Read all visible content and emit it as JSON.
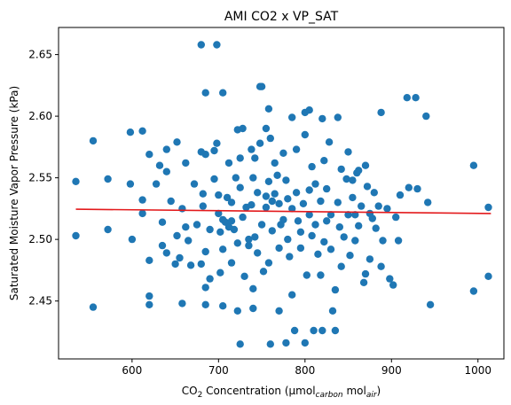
{
  "chart_data": {
    "type": "scatter",
    "title": "AMI CO2 x VP_SAT",
    "xlabel": {
      "main": "CO",
      "sub2": "2",
      "mid": " Concentration (μmol",
      "sub_carbon": "carbon",
      "mol": " mol",
      "sub_air": "air",
      "end": ")"
    },
    "ylabel": "Saturated Moisture Vapor Pressure (kPa)",
    "xlim": [
      515,
      1030
    ],
    "ylim": [
      2.403,
      2.672
    ],
    "xticks": [
      600,
      700,
      800,
      900,
      1000
    ],
    "yticks": [
      2.45,
      2.5,
      2.55,
      2.6,
      2.65
    ],
    "ytick_labels": [
      "2.45",
      "2.50",
      "2.55",
      "2.60",
      "2.65"
    ],
    "point_color": "#1f77b4",
    "line_color": "#e31a1c",
    "trend_line": {
      "x": [
        535,
        1015
      ],
      "y": [
        2.5245,
        2.521
      ]
    },
    "points": [
      [
        535,
        2.547
      ],
      [
        535,
        2.503
      ],
      [
        555,
        2.58
      ],
      [
        555,
        2.445
      ],
      [
        572,
        2.549
      ],
      [
        572,
        2.508
      ],
      [
        598,
        2.587
      ],
      [
        598,
        2.545
      ],
      [
        600,
        2.5
      ],
      [
        612,
        2.588
      ],
      [
        612,
        2.532
      ],
      [
        612,
        2.521
      ],
      [
        620,
        2.569
      ],
      [
        620,
        2.483
      ],
      [
        620,
        2.454
      ],
      [
        620,
        2.447
      ],
      [
        628,
        2.545
      ],
      [
        632,
        2.56
      ],
      [
        635,
        2.514
      ],
      [
        635,
        2.495
      ],
      [
        640,
        2.573
      ],
      [
        640,
        2.555
      ],
      [
        640,
        2.489
      ],
      [
        645,
        2.531
      ],
      [
        650,
        2.48
      ],
      [
        652,
        2.579
      ],
      [
        652,
        2.503
      ],
      [
        655,
        2.485
      ],
      [
        658,
        2.525
      ],
      [
        658,
        2.448
      ],
      [
        662,
        2.562
      ],
      [
        662,
        2.51
      ],
      [
        665,
        2.499
      ],
      [
        668,
        2.479
      ],
      [
        672,
        2.545
      ],
      [
        675,
        2.512
      ],
      [
        680,
        2.658
      ],
      [
        680,
        2.571
      ],
      [
        680,
        2.48
      ],
      [
        682,
        2.537
      ],
      [
        682,
        2.527
      ],
      [
        685,
        2.619
      ],
      [
        685,
        2.569
      ],
      [
        685,
        2.49
      ],
      [
        685,
        2.461
      ],
      [
        685,
        2.447
      ],
      [
        690,
        2.508
      ],
      [
        690,
        2.468
      ],
      [
        695,
        2.572
      ],
      [
        695,
        2.549
      ],
      [
        698,
        2.658
      ],
      [
        698,
        2.578
      ],
      [
        700,
        2.536
      ],
      [
        700,
        2.521
      ],
      [
        702,
        2.506
      ],
      [
        702,
        2.473
      ],
      [
        705,
        2.619
      ],
      [
        705,
        2.516
      ],
      [
        705,
        2.492
      ],
      [
        705,
        2.446
      ],
      [
        708,
        2.514
      ],
      [
        710,
        2.534
      ],
      [
        712,
        2.562
      ],
      [
        712,
        2.51
      ],
      [
        715,
        2.53
      ],
      [
        715,
        2.515
      ],
      [
        715,
        2.481
      ],
      [
        718,
        2.508
      ],
      [
        720,
        2.55
      ],
      [
        722,
        2.589
      ],
      [
        722,
        2.497
      ],
      [
        722,
        2.442
      ],
      [
        725,
        2.415
      ],
      [
        725,
        2.566
      ],
      [
        725,
        2.542
      ],
      [
        728,
        2.59
      ],
      [
        728,
        2.518
      ],
      [
        730,
        2.47
      ],
      [
        732,
        2.526
      ],
      [
        735,
        2.5
      ],
      [
        735,
        2.495
      ],
      [
        738,
        2.573
      ],
      [
        738,
        2.528
      ],
      [
        740,
        2.55
      ],
      [
        740,
        2.46
      ],
      [
        740,
        2.444
      ],
      [
        742,
        2.566
      ],
      [
        742,
        2.502
      ],
      [
        745,
        2.538
      ],
      [
        745,
        2.489
      ],
      [
        748,
        2.624
      ],
      [
        748,
        2.578
      ],
      [
        750,
        2.624
      ],
      [
        750,
        2.512
      ],
      [
        752,
        2.474
      ],
      [
        755,
        2.59
      ],
      [
        755,
        2.535
      ],
      [
        755,
        2.526
      ],
      [
        758,
        2.606
      ],
      [
        758,
        2.547
      ],
      [
        758,
        2.481
      ],
      [
        760,
        2.582
      ],
      [
        760,
        2.415
      ],
      [
        762,
        2.531
      ],
      [
        762,
        2.507
      ],
      [
        765,
        2.562
      ],
      [
        765,
        2.537
      ],
      [
        768,
        2.552
      ],
      [
        770,
        2.529
      ],
      [
        770,
        2.493
      ],
      [
        770,
        2.442
      ],
      [
        772,
        2.512
      ],
      [
        775,
        2.57
      ],
      [
        775,
        2.516
      ],
      [
        778,
        2.416
      ],
      [
        778,
        2.548
      ],
      [
        780,
        2.5
      ],
      [
        780,
        2.533
      ],
      [
        782,
        2.486
      ],
      [
        785,
        2.599
      ],
      [
        785,
        2.525
      ],
      [
        785,
        2.455
      ],
      [
        788,
        2.426
      ],
      [
        790,
        2.573
      ],
      [
        790,
        2.538
      ],
      [
        792,
        2.515
      ],
      [
        795,
        2.506
      ],
      [
        795,
        2.493
      ],
      [
        798,
        2.529
      ],
      [
        800,
        2.603
      ],
      [
        800,
        2.585
      ],
      [
        800,
        2.416
      ],
      [
        802,
        2.471
      ],
      [
        805,
        2.605
      ],
      [
        805,
        2.54
      ],
      [
        805,
        2.52
      ],
      [
        808,
        2.559
      ],
      [
        808,
        2.503
      ],
      [
        810,
        2.426
      ],
      [
        812,
        2.545
      ],
      [
        812,
        2.512
      ],
      [
        815,
        2.488
      ],
      [
        818,
        2.531
      ],
      [
        818,
        2.471
      ],
      [
        820,
        2.426
      ],
      [
        820,
        2.598
      ],
      [
        822,
        2.564
      ],
      [
        822,
        2.498
      ],
      [
        825,
        2.541
      ],
      [
        825,
        2.515
      ],
      [
        828,
        2.579
      ],
      [
        830,
        2.52
      ],
      [
        830,
        2.492
      ],
      [
        832,
        2.442
      ],
      [
        835,
        2.426
      ],
      [
        835,
        2.459
      ],
      [
        838,
        2.599
      ],
      [
        838,
        2.53
      ],
      [
        840,
        2.51
      ],
      [
        842,
        2.557
      ],
      [
        842,
        2.478
      ],
      [
        845,
        2.502
      ],
      [
        848,
        2.549
      ],
      [
        850,
        2.571
      ],
      [
        850,
        2.52
      ],
      [
        852,
        2.487
      ],
      [
        855,
        2.548
      ],
      [
        855,
        2.534
      ],
      [
        858,
        2.52
      ],
      [
        858,
        2.499
      ],
      [
        860,
        2.554
      ],
      [
        862,
        2.556
      ],
      [
        862,
        2.511
      ],
      [
        865,
        2.527
      ],
      [
        868,
        2.465
      ],
      [
        870,
        2.56
      ],
      [
        870,
        2.472
      ],
      [
        872,
        2.543
      ],
      [
        875,
        2.521
      ],
      [
        875,
        2.484
      ],
      [
        878,
        2.517
      ],
      [
        880,
        2.538
      ],
      [
        882,
        2.509
      ],
      [
        885,
        2.527
      ],
      [
        888,
        2.603
      ],
      [
        888,
        2.478
      ],
      [
        890,
        2.499
      ],
      [
        895,
        2.525
      ],
      [
        898,
        2.468
      ],
      [
        902,
        2.463
      ],
      [
        905,
        2.518
      ],
      [
        908,
        2.499
      ],
      [
        910,
        2.536
      ],
      [
        918,
        2.615
      ],
      [
        920,
        2.542
      ],
      [
        928,
        2.615
      ],
      [
        930,
        2.541
      ],
      [
        940,
        2.6
      ],
      [
        942,
        2.53
      ],
      [
        945,
        2.447
      ],
      [
        995,
        2.56
      ],
      [
        995,
        2.458
      ],
      [
        1012,
        2.526
      ],
      [
        1012,
        2.47
      ]
    ]
  }
}
